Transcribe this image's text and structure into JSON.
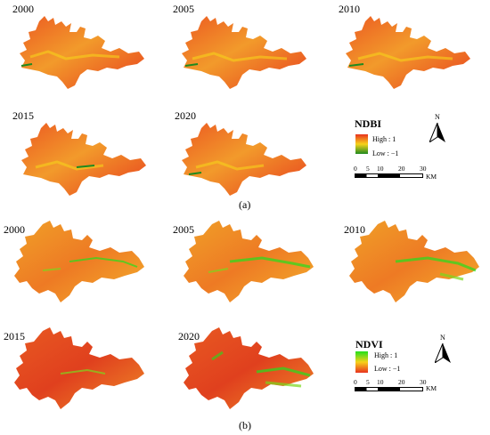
{
  "panel_a": {
    "caption": "(a)",
    "years": [
      "2000",
      "2005",
      "2010",
      "2015",
      "2020"
    ],
    "legend": {
      "title": "NDBI",
      "high": "High : 1",
      "low": "Low : −1"
    },
    "colors": {
      "high": "#e8321e",
      "mid": "#f7b21b",
      "low": "#1f8a1f"
    },
    "scale": {
      "ticks": [
        "0",
        "5",
        "10",
        "20",
        "30"
      ],
      "unit": "KM"
    },
    "north": "N"
  },
  "panel_b": {
    "caption": "(b)",
    "years": [
      "2000",
      "2005",
      "2010",
      "2015",
      "2020"
    ],
    "legend": {
      "title": "NDVI",
      "high": "High : 1",
      "low": "Low : −1"
    },
    "colors": {
      "high": "#22e01c",
      "mid": "#f7d21b",
      "low": "#e8321e"
    },
    "scale": {
      "ticks": [
        "0",
        "5",
        "10",
        "20",
        "30"
      ],
      "unit": "KM"
    },
    "north": "N"
  }
}
